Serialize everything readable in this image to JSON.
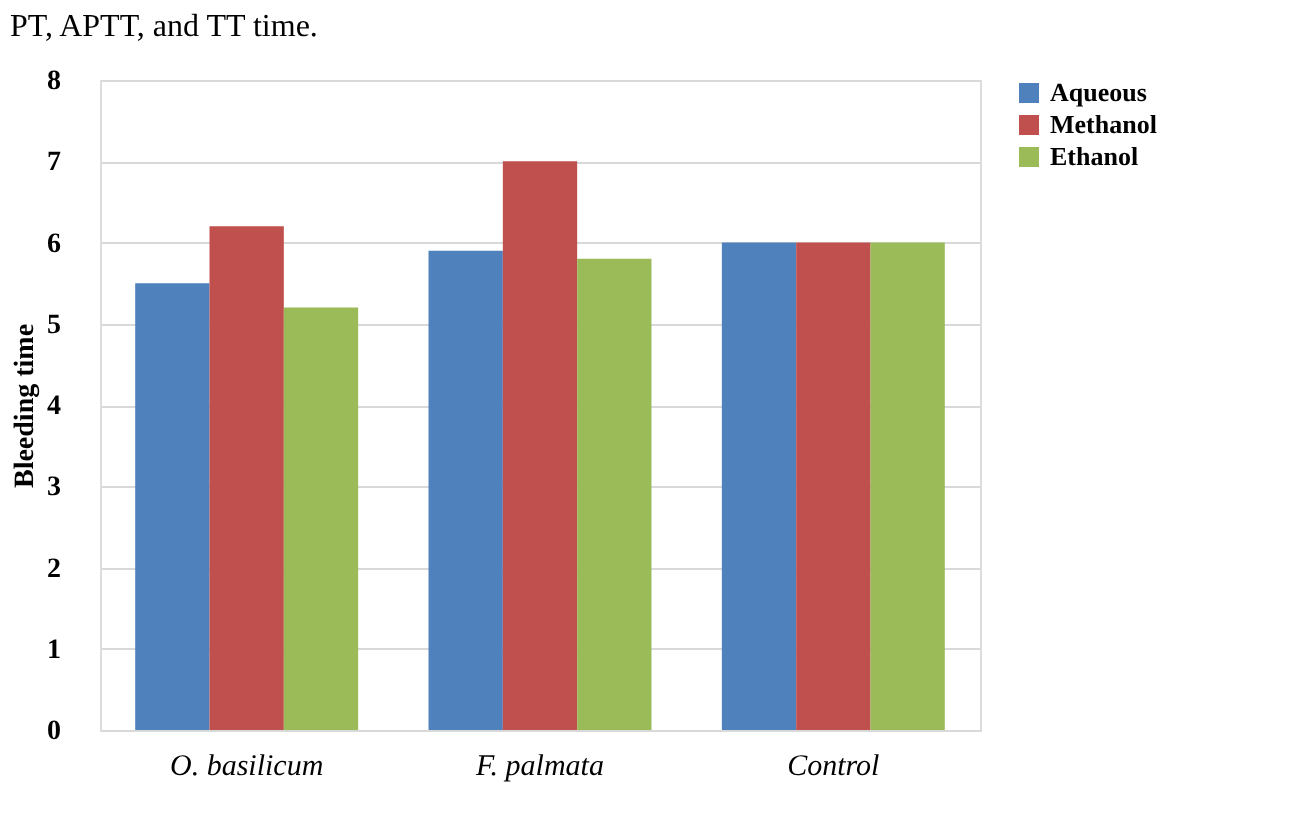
{
  "chart_data": {
    "type": "bar",
    "ylabel": "Bleeding time",
    "annotations": [
      "PT, APTT, and TT time."
    ],
    "categories": [
      "O. basilicum",
      "F. palmata",
      "Control"
    ],
    "series": [
      {
        "name": "Aqueous",
        "color": "#4f81bd",
        "values": [
          5.5,
          5.9,
          6.0
        ]
      },
      {
        "name": "Methanol",
        "color": "#c0504d",
        "values": [
          6.2,
          7.0,
          6.0
        ]
      },
      {
        "name": "Ethanol",
        "color": "#9bbb59",
        "values": [
          5.2,
          5.8,
          6.0
        ]
      }
    ],
    "ylim": [
      0,
      8
    ],
    "yticks": [
      0,
      1,
      2,
      3,
      4,
      5,
      6,
      7,
      8
    ],
    "grid": "y",
    "legend": "right"
  }
}
